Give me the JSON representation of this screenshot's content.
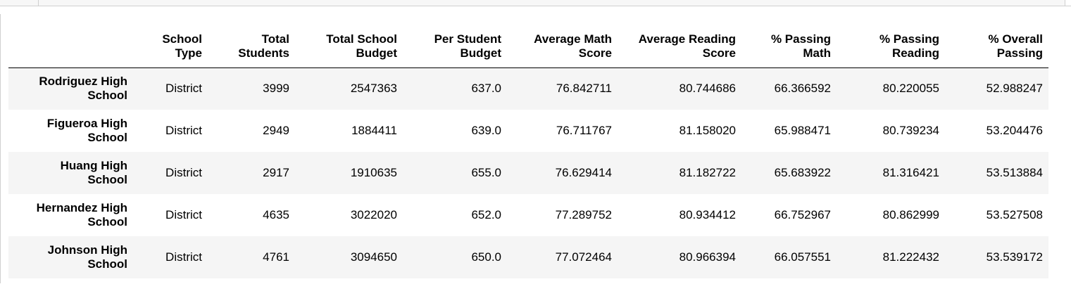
{
  "table": {
    "columns": [
      "School\nType",
      "Total\nStudents",
      "Total School\nBudget",
      "Per Student\nBudget",
      "Average Math\nScore",
      "Average Reading\nScore",
      "% Passing\nMath",
      "% Passing\nReading",
      "% Overall\nPassing"
    ],
    "rows": [
      {
        "index": "Rodriguez High School",
        "index_lines": [
          "Rodriguez High",
          "School"
        ],
        "values": [
          "District",
          "3999",
          "2547363",
          "637.0",
          "76.842711",
          "80.744686",
          "66.366592",
          "80.220055",
          "52.988247"
        ]
      },
      {
        "index": "Figueroa High School",
        "index_lines": [
          "Figueroa High",
          "School"
        ],
        "values": [
          "District",
          "2949",
          "1884411",
          "639.0",
          "76.711767",
          "81.158020",
          "65.988471",
          "80.739234",
          "53.204476"
        ]
      },
      {
        "index": "Huang High School",
        "index_lines": [
          "Huang High",
          "School"
        ],
        "values": [
          "District",
          "2917",
          "1910635",
          "655.0",
          "76.629414",
          "81.182722",
          "65.683922",
          "81.316421",
          "53.513884"
        ]
      },
      {
        "index": "Hernandez High School",
        "index_lines": [
          "Hernandez High",
          "School"
        ],
        "values": [
          "District",
          "4635",
          "3022020",
          "652.0",
          "77.289752",
          "80.934412",
          "66.752967",
          "80.862999",
          "53.527508"
        ]
      },
      {
        "index": "Johnson High School",
        "index_lines": [
          "Johnson High",
          "School"
        ],
        "values": [
          "District",
          "4761",
          "3094650",
          "650.0",
          "77.072464",
          "80.966394",
          "66.057551",
          "81.222432",
          "53.539172"
        ]
      }
    ]
  }
}
